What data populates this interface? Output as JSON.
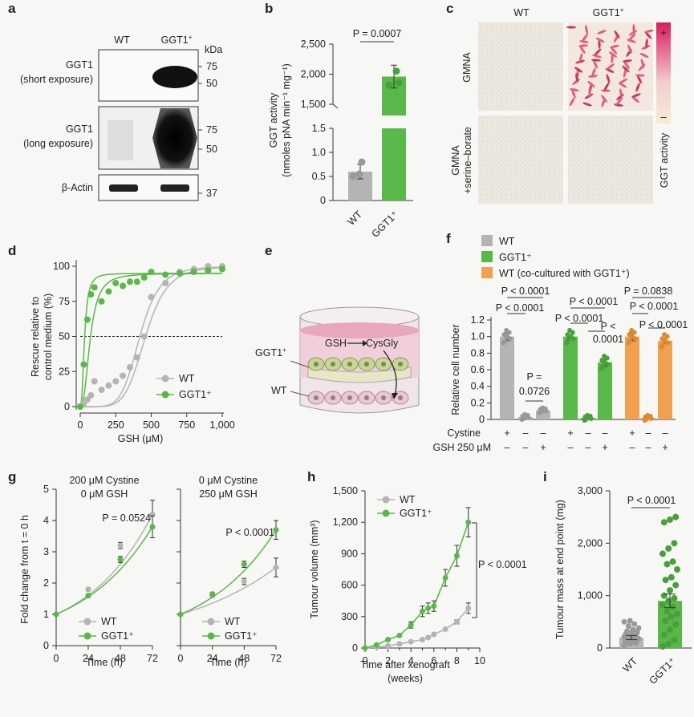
{
  "colors": {
    "wt": "#b4b4b4",
    "ggt1": "#5ab84a",
    "cocult": "#f0a050",
    "dark": "#333333"
  },
  "panel_letters": [
    "a",
    "b",
    "c",
    "d",
    "e",
    "f",
    "g",
    "h",
    "i"
  ],
  "panel_a": {
    "col_wt": "WT",
    "col_ggt1": "GGT1",
    "col_ggt1_sup": "+",
    "kda": "kDa",
    "rows": [
      {
        "label1": "GGT1",
        "label2": "(short exposure)",
        "markers": [
          "75",
          "50"
        ]
      },
      {
        "label1": "GGT1",
        "label2": "(long exposure)",
        "markers": [
          "75",
          "50"
        ]
      },
      {
        "label1": "β-Actin",
        "label2": "",
        "markers": [
          "37"
        ]
      }
    ]
  },
  "panel_c": {
    "col_wt": "WT",
    "col_ggt1": "GGT1",
    "col_ggt1_sup": "+",
    "row1": "GMNA",
    "row2a": "GMNA",
    "row2b": "+serine–borate",
    "scale_plus": "+",
    "scale_minus": "–",
    "scale_label": "GGT activity"
  },
  "panel_e": {
    "ggt1_label": "GGT1",
    "ggt1_sup": "+",
    "wt_label": "WT",
    "gsh": "GSH",
    "cysgly": "CysGly"
  },
  "chart_data": [
    {
      "panel": "b",
      "type": "bar",
      "categories": [
        "WT",
        "GGT1⁺"
      ],
      "values": [
        0.6,
        1960
      ],
      "errors": [
        0.15,
        190
      ],
      "points": [
        [
          0.55,
          0.5,
          0.8
        ],
        [
          1820,
          1860,
          2050
        ]
      ],
      "ylabel1": "GGT activity",
      "ylabel2": "(nmoles pNA min⁻¹ mg⁻¹)",
      "yticks_low": [
        "0",
        "0.5",
        "1.0",
        "1.5"
      ],
      "yticks_high": [
        "1,500",
        "2,000",
        "2,500"
      ],
      "axis_break": true,
      "annotation": "P = 0.0007"
    },
    {
      "panel": "d",
      "type": "scatter",
      "xlabel": "GSH (μM)",
      "ylabel1": "Rescue relative to",
      "ylabel2": "control medium (%)",
      "xticks": [
        "0",
        "250",
        "500",
        "750",
        "1,000"
      ],
      "yticks": [
        "0",
        "25",
        "50",
        "75",
        "100"
      ],
      "xlim": [
        0,
        1000
      ],
      "ylim": [
        0,
        100
      ],
      "reference_line": 50,
      "legend": [
        "WT",
        "GGT1⁺"
      ],
      "series": [
        {
          "name": "WT",
          "x": [
            0,
            25,
            50,
            75,
            100,
            150,
            200,
            250,
            300,
            350,
            400,
            450,
            500,
            600,
            700,
            800,
            900,
            1000
          ],
          "y": [
            0,
            2,
            5,
            8,
            18,
            12,
            15,
            18,
            22,
            28,
            35,
            50,
            78,
            88,
            96,
            98,
            100,
            100
          ]
        },
        {
          "name": "GGT1⁺",
          "x": [
            0,
            25,
            50,
            75,
            100,
            150,
            200,
            250,
            300,
            350,
            400,
            450,
            500,
            600,
            700,
            800,
            900,
            1000
          ],
          "y": [
            0,
            30,
            62,
            80,
            85,
            75,
            82,
            88,
            86,
            89,
            89,
            92,
            96,
            94,
            95,
            96,
            97,
            98
          ]
        }
      ]
    },
    {
      "panel": "f",
      "type": "bar",
      "ylabel": "Relative cell number",
      "yticks": [
        "0",
        "0.2",
        "0.4",
        "0.6",
        "0.8",
        "1.0",
        "1.2"
      ],
      "ylim": [
        0,
        1.2
      ],
      "legend": [
        "WT",
        "GGT1⁺",
        "WT (co-cultured with GGT1⁺)"
      ],
      "groups": [
        {
          "name": "WT",
          "values": [
            1.0,
            0.03,
            0.11
          ],
          "errors": [
            0.05,
            0.01,
            0.02
          ]
        },
        {
          "name": "GGT1⁺",
          "values": [
            1.0,
            0.02,
            0.69
          ],
          "errors": [
            0.02,
            0.01,
            0.05
          ]
        },
        {
          "name": "WT (co-cultured with GGT1⁺)",
          "values": [
            1.0,
            0.02,
            0.95
          ],
          "errors": [
            0.05,
            0.005,
            0.03
          ]
        }
      ],
      "conditions": {
        "cystine_label": "Cystine",
        "gsh_label": "GSH 250 μM",
        "cystine": [
          "+",
          "–",
          "–",
          "+",
          "–",
          "–",
          "+",
          "–",
          "–"
        ],
        "gsh": [
          "–",
          "–",
          "+",
          "–",
          "–",
          "+",
          "–",
          "–",
          "+"
        ]
      },
      "annotations": [
        "P < 0.0001",
        "P < 0.0001",
        "P =",
        "0.0726",
        "P < 0.0001",
        "P < 0.0001",
        "P <",
        "0.0001",
        "P = 0.0838",
        "P < 0.0001",
        "P < 0.0001"
      ]
    },
    {
      "panel": "g1",
      "type": "line",
      "title1": "200 μM Cystine",
      "title2": "0 μM GSH",
      "xlabel": "Time (h)",
      "ylabel": "Fold change from t = 0 h",
      "xticks": [
        "0",
        "24",
        "48",
        "72"
      ],
      "yticks": [
        "0",
        "1",
        "2",
        "3",
        "4",
        "5"
      ],
      "xlim": [
        0,
        72
      ],
      "ylim": [
        0,
        5
      ],
      "annotation": "P = 0.0524",
      "legend": [
        "WT",
        "GGT1⁺"
      ],
      "series": [
        {
          "name": "WT",
          "x": [
            0,
            24,
            48,
            72
          ],
          "y": [
            1.0,
            1.8,
            3.2,
            4.2
          ],
          "err": [
            0,
            0.05,
            0.1,
            0.45
          ]
        },
        {
          "name": "GGT1⁺",
          "x": [
            0,
            24,
            48,
            72
          ],
          "y": [
            1.0,
            1.6,
            2.75,
            3.8
          ],
          "err": [
            0,
            0.05,
            0.1,
            0.35
          ]
        }
      ]
    },
    {
      "panel": "g2",
      "type": "line",
      "title1": "0 μM Cystine",
      "title2": "250 μM GSH",
      "xlabel": "Time (h)",
      "xticks": [
        "0",
        "24",
        "48",
        "72"
      ],
      "yticks": [
        "0",
        "1",
        "2",
        "3",
        "4",
        "5"
      ],
      "xlim": [
        0,
        72
      ],
      "ylim": [
        0,
        5
      ],
      "annotation": "P < 0.0001",
      "legend": [
        "WT",
        "GGT1⁺"
      ],
      "series": [
        {
          "name": "WT",
          "x": [
            0,
            24,
            48,
            72
          ],
          "y": [
            1.0,
            1.6,
            2.05,
            2.5
          ],
          "err": [
            0,
            0.05,
            0.1,
            0.3
          ]
        },
        {
          "name": "GGT1⁺",
          "x": [
            0,
            24,
            48,
            72
          ],
          "y": [
            1.0,
            1.65,
            2.6,
            3.7
          ],
          "err": [
            0,
            0.05,
            0.1,
            0.3
          ]
        }
      ]
    },
    {
      "panel": "h",
      "type": "line",
      "xlabel1": "Time after xenograft",
      "xlabel2": "(weeks)",
      "ylabel": "Tumour volume (mm³)",
      "xticks": [
        "0",
        "2",
        "4",
        "6",
        "8",
        "10"
      ],
      "yticks": [
        "0",
        "300",
        "600",
        "900",
        "1,200",
        "1,500"
      ],
      "xlim": [
        0,
        10
      ],
      "ylim": [
        0,
        1500
      ],
      "annotation": "P < 0.0001",
      "legend": [
        "WT",
        "GGT1⁺"
      ],
      "series": [
        {
          "name": "WT",
          "x": [
            0,
            1,
            2,
            3,
            4,
            5,
            5.5,
            6,
            7,
            8,
            9
          ],
          "y": [
            0,
            10,
            20,
            40,
            60,
            80,
            100,
            130,
            180,
            250,
            380
          ],
          "err": [
            0,
            0,
            0,
            0,
            0,
            0,
            0,
            0,
            0,
            20,
            50
          ]
        },
        {
          "name": "GGT1⁺",
          "x": [
            0,
            1,
            2,
            3,
            4,
            5,
            5.5,
            6,
            7,
            8,
            9
          ],
          "y": [
            0,
            30,
            80,
            120,
            220,
            350,
            380,
            400,
            670,
            880,
            1200
          ],
          "err": [
            0,
            0,
            0,
            0,
            30,
            50,
            50,
            50,
            80,
            100,
            140
          ]
        }
      ]
    },
    {
      "panel": "i",
      "type": "bar",
      "categories": [
        "WT",
        "GGT1⁺"
      ],
      "values": [
        200,
        900
      ],
      "errors": [
        40,
        130
      ],
      "ylabel": "Tumour mass at end point (mg)",
      "yticks": [
        "0",
        "1,000",
        "2,000",
        "3,000"
      ],
      "ylim": [
        0,
        3000
      ],
      "annotation": "P < 0.0001"
    }
  ]
}
